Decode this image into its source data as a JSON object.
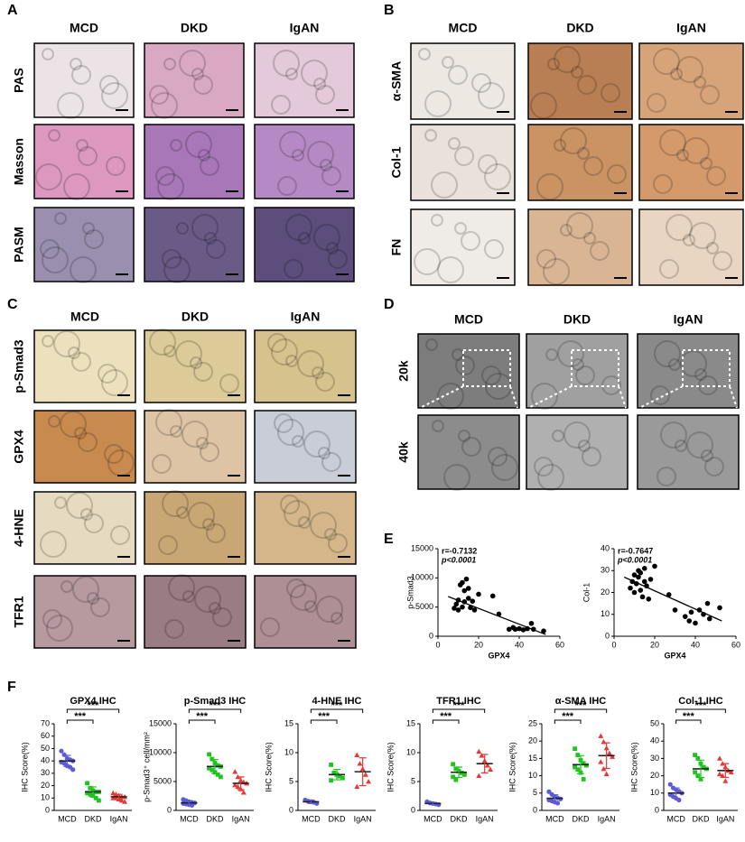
{
  "panel_labels": [
    "A",
    "B",
    "C",
    "D",
    "E",
    "F"
  ],
  "panels": [
    {
      "columns": [
        "MCD",
        "DKD",
        "IgAN"
      ],
      "rows": [
        "PAS",
        "Masson",
        "PASM"
      ]
    },
    {
      "columns": [
        "MCD",
        "DKD",
        "IgAN"
      ],
      "rows": [
        "α-SMA",
        "Col-1",
        "FN"
      ]
    },
    {
      "columns": [
        "MCD",
        "DKD",
        "IgAN"
      ],
      "rows": [
        "p-Smad3",
        "GPX4",
        "4-HNE",
        "TFR1"
      ]
    },
    {
      "columns": [
        "MCD",
        "DKD",
        "IgAN"
      ],
      "rows": [
        "20k",
        "40k"
      ]
    }
  ],
  "chart_data": [
    {
      "type": "scatter",
      "annotations": [
        "r=-0.7132",
        "p<0.0001"
      ],
      "x_label": "GPX4",
      "y_label": "p-Smad3",
      "x": [
        8,
        9,
        10,
        10,
        11,
        12,
        12,
        13,
        13,
        14,
        15,
        15,
        16,
        17,
        18,
        20,
        27,
        30,
        35,
        37,
        38,
        40,
        42,
        44,
        46,
        47,
        52
      ],
      "values": [
        4800,
        5500,
        4500,
        6200,
        8800,
        5000,
        9200,
        7800,
        5900,
        9800,
        8200,
        6500,
        4900,
        6000,
        4500,
        7200,
        6900,
        3800,
        1200,
        1500,
        1200,
        1300,
        1100,
        1300,
        2200,
        1200,
        900
      ],
      "fit_line": {
        "x": [
          5,
          53
        ],
        "y": [
          6800,
          300
        ]
      },
      "xlim": [
        0,
        60
      ],
      "xticks": [
        0,
        20,
        40,
        60
      ],
      "ylim": [
        0,
        15000
      ],
      "yticks": [
        0,
        5000,
        10000,
        15000
      ],
      "color": "#000000"
    },
    {
      "type": "scatter",
      "annotations": [
        "r=-0.7647",
        "p<0.0001"
      ],
      "x_label": "GPX4",
      "y_label": "Col-1",
      "x": [
        8,
        9,
        10,
        10,
        11,
        12,
        12,
        13,
        13,
        14,
        15,
        15,
        16,
        17,
        18,
        20,
        27,
        30,
        35,
        37,
        38,
        40,
        42,
        44,
        46,
        47,
        52
      ],
      "values": [
        22,
        25,
        20,
        28,
        24,
        27,
        30,
        29,
        21,
        18,
        31,
        25,
        23,
        17,
        26,
        32,
        19,
        12,
        9,
        7,
        11,
        6,
        12,
        10,
        15,
        8,
        13
      ],
      "fit_line": {
        "x": [
          5,
          53
        ],
        "y": [
          27,
          7
        ]
      },
      "xlim": [
        0,
        60
      ],
      "xticks": [
        0,
        20,
        40,
        60
      ],
      "ylim": [
        0,
        40
      ],
      "yticks": [
        0,
        10,
        20,
        30,
        40
      ],
      "color": "#000000"
    },
    {
      "type": "dotplot",
      "title": "GPX4 IHC",
      "y_label": "IHC Score(%)",
      "ylim": [
        0,
        70
      ],
      "yticks": [
        0,
        10,
        20,
        30,
        40,
        50,
        60,
        70
      ],
      "groups": [
        {
          "name": "MCD",
          "color": "#5b5bd6",
          "marker": "circle",
          "values": [
            48,
            45,
            42,
            41,
            40,
            39,
            38,
            36,
            35,
            33
          ],
          "mean": 40,
          "sd": 4.5
        },
        {
          "name": "DKD",
          "color": "#1fc41f",
          "marker": "square",
          "values": [
            22,
            18,
            16,
            15,
            15,
            14,
            13,
            12,
            10,
            8
          ],
          "mean": 15,
          "sd": 4
        },
        {
          "name": "IgAN",
          "color": "#e53935",
          "marker": "triangle",
          "values": [
            14,
            13,
            12,
            11,
            11,
            10,
            10,
            9,
            8,
            7
          ],
          "mean": 11,
          "sd": 2
        }
      ],
      "brackets": [
        {
          "label": "***",
          "groups": [
            0,
            1
          ]
        },
        {
          "label": "***",
          "groups": [
            0,
            2
          ]
        }
      ]
    },
    {
      "type": "dotplot",
      "title": "p-Smad3 IHC",
      "y_label": "p-Smad3⁺ cell/mm²",
      "ylim": [
        0,
        15000
      ],
      "yticks": [
        0,
        5000,
        10000,
        15000
      ],
      "groups": [
        {
          "name": "MCD",
          "color": "#5b5bd6",
          "marker": "circle",
          "values": [
            1900,
            1700,
            1500,
            1400,
            1300,
            1200,
            1100,
            1000,
            900
          ],
          "mean": 1300,
          "sd": 350
        },
        {
          "name": "DKD",
          "color": "#1fc41f",
          "marker": "square",
          "values": [
            9700,
            8900,
            8200,
            7800,
            7600,
            7300,
            7000,
            6600,
            6200,
            5800
          ],
          "mean": 7600,
          "sd": 1200
        },
        {
          "name": "IgAN",
          "color": "#e53935",
          "marker": "triangle",
          "values": [
            6700,
            5800,
            5200,
            4900,
            4700,
            4400,
            4100,
            3700,
            3100
          ],
          "mean": 4700,
          "sd": 1100
        }
      ],
      "brackets": [
        {
          "label": "***",
          "groups": [
            0,
            1
          ]
        },
        {
          "label": "***",
          "groups": [
            0,
            2
          ]
        }
      ]
    },
    {
      "type": "dotplot",
      "title": "4-HNE IHC",
      "y_label": "IHC Score(%)",
      "ylim": [
        0,
        15
      ],
      "yticks": [
        0,
        5,
        10,
        15
      ],
      "groups": [
        {
          "name": "MCD",
          "color": "#5b5bd6",
          "marker": "circle",
          "values": [
            1.8,
            1.6,
            1.5,
            1.4,
            1.2
          ],
          "mean": 1.5,
          "sd": 0.3
        },
        {
          "name": "DKD",
          "color": "#1fc41f",
          "marker": "square",
          "values": [
            7.9,
            6.5,
            6.2,
            5.9,
            5.6,
            5.2
          ],
          "mean": 6.2,
          "sd": 0.9
        },
        {
          "name": "IgAN",
          "color": "#e53935",
          "marker": "triangle",
          "values": [
            9.6,
            8.1,
            7.2,
            6.2,
            5.0,
            4.1
          ],
          "mean": 6.7,
          "sd": 2.4
        }
      ],
      "brackets": [
        {
          "label": "***",
          "groups": [
            0,
            1
          ]
        },
        {
          "label": "***",
          "groups": [
            0,
            2
          ]
        }
      ]
    },
    {
      "type": "dotplot",
      "title": "TFR1 IHC",
      "y_label": "IHC Score(%)",
      "ylim": [
        0,
        15
      ],
      "yticks": [
        0,
        5,
        10,
        15
      ],
      "groups": [
        {
          "name": "MCD",
          "color": "#5b5bd6",
          "marker": "circle",
          "values": [
            1.5,
            1.3,
            1.2,
            1.1,
            1.0
          ],
          "mean": 1.2,
          "sd": 0.2
        },
        {
          "name": "DKD",
          "color": "#1fc41f",
          "marker": "square",
          "values": [
            8.0,
            7.2,
            6.8,
            6.5,
            6.2,
            5.8,
            5.3
          ],
          "mean": 6.6,
          "sd": 0.9
        },
        {
          "name": "IgAN",
          "color": "#e53935",
          "marker": "triangle",
          "values": [
            10.2,
            9.5,
            8.6,
            7.8,
            7.1,
            6.0
          ],
          "mean": 8.1,
          "sd": 1.6
        }
      ],
      "brackets": [
        {
          "label": "***",
          "groups": [
            0,
            1
          ]
        },
        {
          "label": "***",
          "groups": [
            0,
            2
          ]
        }
      ]
    },
    {
      "type": "dotplot",
      "title": "α-SMA IHC",
      "y_label": "IHC Score(%)",
      "ylim": [
        0,
        25
      ],
      "yticks": [
        0,
        5,
        10,
        15,
        20,
        25
      ],
      "groups": [
        {
          "name": "MCD",
          "color": "#5b5bd6",
          "marker": "circle",
          "values": [
            5.4,
            4.6,
            4.0,
            3.6,
            3.3,
            3.0,
            2.7,
            2.4,
            2.1
          ],
          "mean": 3.5,
          "sd": 1.0
        },
        {
          "name": "DKD",
          "color": "#1fc41f",
          "marker": "square",
          "values": [
            17.8,
            16.0,
            14.5,
            13.6,
            13.0,
            12.5,
            11.8,
            10.9,
            9.0
          ],
          "mean": 13.2,
          "sd": 2.6
        },
        {
          "name": "IgAN",
          "color": "#e53935",
          "marker": "triangle",
          "values": [
            21.5,
            19.8,
            18.0,
            16.5,
            15.5,
            14.0,
            12.0,
            10.5
          ],
          "mean": 15.8,
          "sd": 3.7
        }
      ],
      "brackets": [
        {
          "label": "***",
          "groups": [
            0,
            1
          ]
        },
        {
          "label": "***",
          "groups": [
            0,
            2
          ]
        }
      ]
    },
    {
      "type": "dotplot",
      "title": "Col-1 IHC",
      "y_label": "IHC Score(%)",
      "ylim": [
        0,
        50
      ],
      "yticks": [
        0,
        10,
        20,
        30,
        40,
        50
      ],
      "groups": [
        {
          "name": "MCD",
          "color": "#5b5bd6",
          "marker": "circle",
          "values": [
            15,
            13,
            12,
            11,
            10,
            9,
            8,
            7,
            6
          ],
          "mean": 10,
          "sd": 3
        },
        {
          "name": "DKD",
          "color": "#1fc41f",
          "marker": "square",
          "values": [
            32,
            30,
            27,
            25,
            24,
            22,
            20,
            18
          ],
          "mean": 24,
          "sd": 5
        },
        {
          "name": "IgAN",
          "color": "#e53935",
          "marker": "triangle",
          "values": [
            30,
            27,
            25,
            23,
            22,
            21,
            20,
            17
          ],
          "mean": 23,
          "sd": 4
        }
      ],
      "brackets": [
        {
          "label": "***",
          "groups": [
            0,
            1
          ]
        },
        {
          "label": "***",
          "groups": [
            0,
            2
          ]
        }
      ]
    }
  ]
}
